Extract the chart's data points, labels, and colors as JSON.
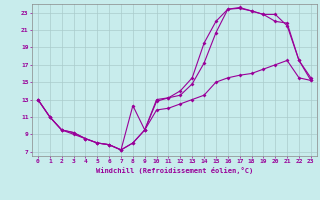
{
  "xlabel": "Windchill (Refroidissement éolien,°C)",
  "bg_color": "#c8ecec",
  "grid_color": "#aacccc",
  "line_color": "#990099",
  "xlim": [
    -0.5,
    23.5
  ],
  "ylim": [
    6.5,
    24
  ],
  "xticks": [
    0,
    1,
    2,
    3,
    4,
    5,
    6,
    7,
    8,
    9,
    10,
    11,
    12,
    13,
    14,
    15,
    16,
    17,
    18,
    19,
    20,
    21,
    22,
    23
  ],
  "yticks": [
    7,
    9,
    11,
    13,
    15,
    17,
    19,
    21,
    23
  ],
  "c1x": [
    0,
    1,
    2,
    3,
    4,
    5,
    6,
    7,
    8,
    9,
    10,
    11,
    12,
    13,
    14,
    15,
    16,
    17,
    18,
    19,
    20,
    21,
    22,
    23
  ],
  "c1y": [
    13,
    11,
    9.5,
    9.2,
    8.5,
    8.0,
    7.8,
    7.2,
    12.3,
    9.5,
    13.0,
    13.2,
    14.0,
    15.5,
    19.5,
    22.0,
    23.4,
    23.5,
    23.2,
    22.8,
    22.8,
    21.5,
    17.5,
    15.2
  ],
  "c2x": [
    0,
    1,
    2,
    3,
    4,
    5,
    6,
    7,
    8,
    9,
    10,
    11,
    12,
    13,
    14,
    15,
    16,
    17,
    18,
    19,
    20,
    21,
    22,
    23
  ],
  "c2y": [
    13,
    11,
    9.5,
    9.0,
    8.5,
    8.0,
    7.8,
    7.2,
    8.0,
    9.5,
    12.8,
    13.2,
    13.5,
    14.8,
    17.2,
    20.7,
    23.4,
    23.6,
    23.2,
    22.8,
    22.0,
    21.8,
    17.5,
    15.5
  ],
  "c3x": [
    0,
    1,
    2,
    3,
    4,
    5,
    6,
    7,
    8,
    9,
    10,
    11,
    12,
    13,
    14,
    15,
    16,
    17,
    18,
    19,
    20,
    21,
    22,
    23
  ],
  "c3y": [
    13,
    11,
    9.5,
    9.2,
    8.5,
    8.0,
    7.8,
    7.2,
    8.0,
    9.5,
    11.8,
    12.0,
    12.5,
    13.0,
    13.5,
    15.0,
    15.5,
    15.8,
    16.0,
    16.5,
    17.0,
    17.5,
    15.5,
    15.2
  ]
}
